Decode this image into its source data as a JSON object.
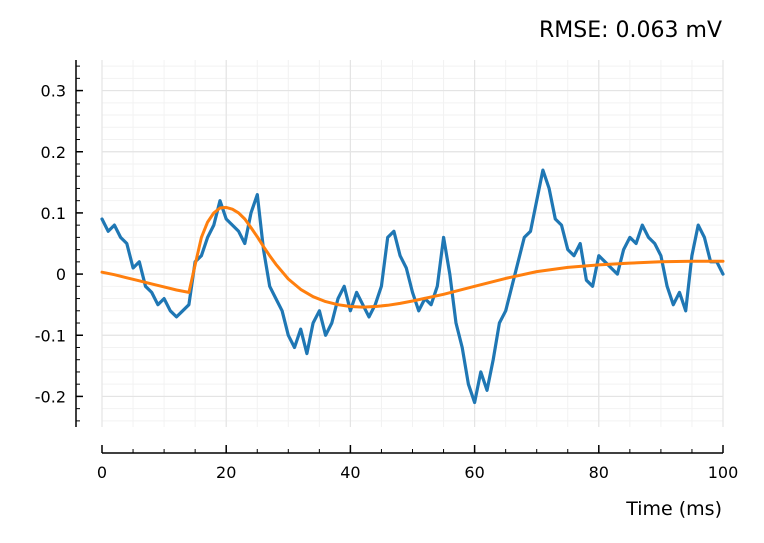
{
  "chart_data": {
    "type": "line",
    "title": "RMSE: 0.063 mV",
    "xlabel": "Time (ms)",
    "ylabel": "",
    "xlim": [
      0,
      100
    ],
    "ylim": [
      -0.25,
      0.35
    ],
    "xticks": [
      0,
      20,
      40,
      60,
      80,
      100
    ],
    "xtick_labels": [
      "0",
      "20",
      "40",
      "60",
      "80",
      "100"
    ],
    "yticks": [
      0.3,
      0.2,
      0.1,
      0,
      -0.1,
      -0.2
    ],
    "ytick_labels": [
      "0.3",
      "0.2",
      "0.1",
      "0",
      "-0.1",
      "-0.2"
    ],
    "grid": true,
    "colors": {
      "recorded": "#1f77b4",
      "fit": "#ff7f0e"
    },
    "series": [
      {
        "x": [
          0,
          1,
          2,
          3,
          4,
          5,
          6,
          7,
          8,
          9,
          10,
          11,
          12,
          13,
          14,
          15,
          16,
          17,
          18,
          19,
          20,
          21,
          22,
          23,
          24,
          25,
          26,
          27,
          28,
          29,
          30,
          31,
          32,
          33,
          34,
          35,
          36,
          37,
          38,
          39,
          40,
          41,
          42,
          43,
          44,
          45,
          46,
          47,
          48,
          49,
          50,
          51,
          52,
          53,
          54,
          55,
          56,
          57,
          58,
          59,
          60,
          61,
          62,
          63,
          64,
          65,
          66,
          67,
          68,
          69,
          70,
          71,
          72,
          73,
          74,
          75,
          76,
          77,
          78,
          79,
          80,
          81,
          82,
          83,
          84,
          85,
          86,
          87,
          88,
          89,
          90,
          91,
          92,
          93,
          94,
          95,
          96,
          97,
          98,
          99,
          100
        ],
        "y": [
          0.09,
          0.07,
          0.08,
          0.06,
          0.05,
          0.01,
          0.02,
          -0.02,
          -0.03,
          -0.05,
          -0.04,
          -0.06,
          -0.07,
          -0.06,
          -0.05,
          0.02,
          0.03,
          0.06,
          0.08,
          0.12,
          0.09,
          0.08,
          0.07,
          0.05,
          0.1,
          0.13,
          0.04,
          -0.02,
          -0.04,
          -0.06,
          -0.1,
          -0.12,
          -0.09,
          -0.13,
          -0.08,
          -0.06,
          -0.1,
          -0.08,
          -0.04,
          -0.02,
          -0.06,
          -0.03,
          -0.05,
          -0.07,
          -0.05,
          -0.02,
          0.06,
          0.07,
          0.03,
          0.01,
          -0.03,
          -0.06,
          -0.04,
          -0.05,
          -0.02,
          0.06,
          0.0,
          -0.08,
          -0.12,
          -0.18,
          -0.21,
          -0.16,
          -0.19,
          -0.14,
          -0.08,
          -0.06,
          -0.02,
          0.02,
          0.06,
          0.07,
          0.12,
          0.17,
          0.14,
          0.09,
          0.08,
          0.04,
          0.03,
          0.05,
          -0.01,
          -0.02,
          0.03,
          0.02,
          0.01,
          0.0,
          0.04,
          0.06,
          0.05,
          0.08,
          0.06,
          0.05,
          0.03,
          -0.02,
          -0.05,
          -0.03,
          -0.06,
          0.03,
          0.08,
          0.06,
          0.02,
          0.02,
          0.0
        ]
      },
      {
        "x": [
          0,
          2,
          4,
          6,
          8,
          10,
          12,
          14,
          15,
          16,
          17,
          18,
          19,
          20,
          21,
          22,
          23,
          24,
          25,
          26,
          27,
          28,
          30,
          32,
          34,
          36,
          38,
          40,
          42,
          44,
          46,
          48,
          50,
          55,
          60,
          65,
          70,
          75,
          80,
          85,
          90,
          95,
          100
        ],
        "y": [
          0.003,
          -0.001,
          -0.006,
          -0.011,
          -0.016,
          -0.021,
          -0.026,
          -0.03,
          0.015,
          0.06,
          0.085,
          0.1,
          0.108,
          0.109,
          0.106,
          0.1,
          0.09,
          0.076,
          0.061,
          0.045,
          0.03,
          0.016,
          -0.008,
          -0.025,
          -0.037,
          -0.045,
          -0.05,
          -0.053,
          -0.054,
          -0.053,
          -0.051,
          -0.048,
          -0.044,
          -0.033,
          -0.02,
          -0.007,
          0.004,
          0.011,
          0.015,
          0.018,
          0.02,
          0.021,
          0.021
        ]
      }
    ]
  }
}
